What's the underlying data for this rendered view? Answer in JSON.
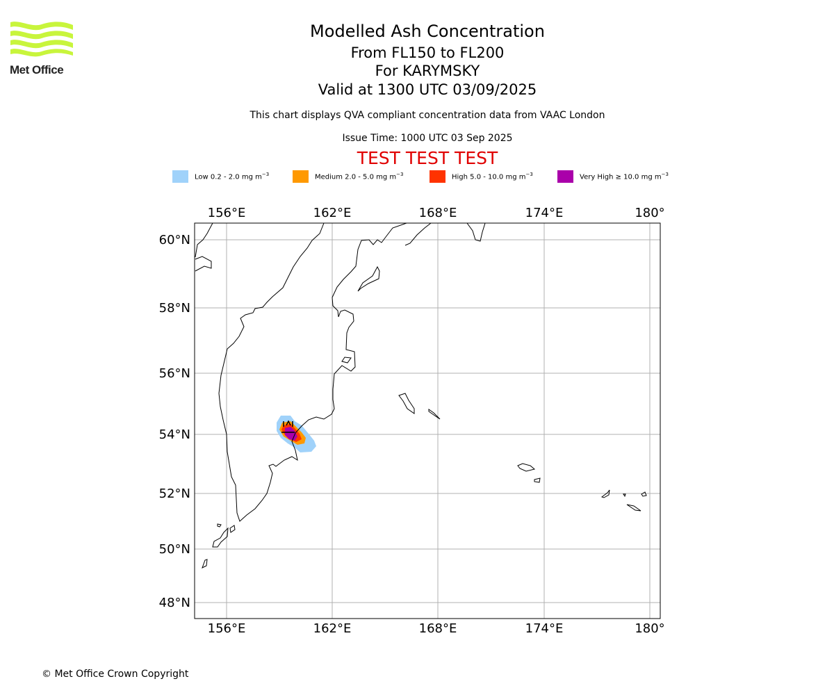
{
  "header": {
    "title": "Modelled Ash Concentration",
    "levels": "From FL150 to FL200",
    "volcano": "For KARYMSKY",
    "valid": "Valid at 1300 UTC 03/09/2025",
    "subtitle": "This chart displays QVA compliant concentration data from VAAC London",
    "issue_time": "Issue Time: 1000 UTC 03 Sep 2025",
    "test_banner": "TEST TEST TEST"
  },
  "logo": {
    "text": "Met Office"
  },
  "legend": [
    {
      "label": "Low 0.2 - 2.0 mg m",
      "unit_exp": "−3",
      "color": "#a0d2fa"
    },
    {
      "label": "Medium 2.0 - 5.0 mg m",
      "unit_exp": "−3",
      "color": "#ff9900"
    },
    {
      "label": "High 5.0 - 10.0 mg m",
      "unit_exp": "−3",
      "color": "#ff3300"
    },
    {
      "label": "Very High  ≥  10.0 mg m",
      "unit_exp": "−3",
      "color": "#aa00aa"
    }
  ],
  "map": {
    "lon_ticks": [
      "156°E",
      "162°E",
      "168°E",
      "174°E",
      "180°"
    ],
    "lat_ticks": [
      "60°N",
      "58°N",
      "56°N",
      "54°N",
      "52°N",
      "50°N",
      "48°N"
    ],
    "gridline_color": "#b0b0b0",
    "coast_color": "#000000"
  },
  "footer": {
    "copyright": "© Met Office Crown Copyright"
  }
}
